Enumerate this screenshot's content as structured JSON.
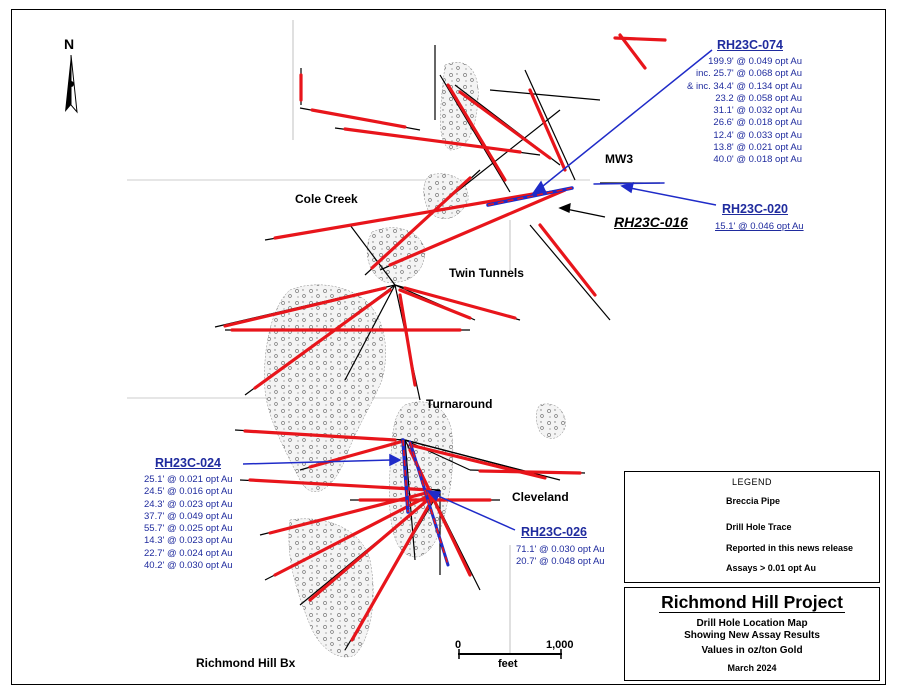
{
  "north_arrow": {
    "letter": "N"
  },
  "areas": {
    "cole_creek": "Cole Creek",
    "twin_tunnels": "Twin Tunnels",
    "turnaround": "Turnaround",
    "cleveland": "Cleveland",
    "mw3": "MW3",
    "richmond_hill_bx": "Richmond Hill Bx"
  },
  "holes": {
    "rh23c_074": {
      "name": "RH23C-074",
      "assays": [
        "199.9' @ 0.049 opt Au",
        "inc. 25.7' @ 0.068 opt Au",
        "& inc. 34.4' @ 0.134 opt Au",
        "23.2  @ 0.058 opt Au",
        "31.1' @ 0.032 opt Au",
        "26.6' @ 0.018 opt Au",
        "12.4' @ 0.033 opt Au",
        "13.8' @  0.021 opt Au",
        "40.0' @ 0.018 opt Au"
      ]
    },
    "rh23c_020": {
      "name": "RH23C-020",
      "assays": [
        "15.1' @ 0.046 opt Au"
      ]
    },
    "rh23c_016": {
      "name": "RH23C-016"
    },
    "rh23c_024": {
      "name": "RH23C-024",
      "assays": [
        "25.1' @ 0.021 opt Au",
        "24.5' @ 0.016 opt Au",
        "24.3' @ 0.023 opt Au",
        "37.7' @ 0.049 opt Au",
        "55.7' @ 0.025 opt Au",
        "14.3' @ 0.023 opt Au",
        "22.7' @ 0.024 opt Au",
        "40.2' @ 0.030 opt Au"
      ]
    },
    "rh23c_026": {
      "name": "RH23C-026",
      "assays": [
        "71.1' @ 0.030 opt Au",
        "20.7' @ 0.048 opt Au"
      ]
    }
  },
  "legend": {
    "title": "LEGEND",
    "breccia": "Breccia Pipe",
    "trace": "Drill Hole Trace",
    "reported": "Reported in this news release",
    "assays": "Assays > 0.01 opt Au"
  },
  "title_block": {
    "project": "Richmond Hill Project",
    "line1": "Drill Hole Location Map",
    "line2": "Showing New Assay Results",
    "line3": "Values in oz/ton Gold",
    "date": "March 2024"
  },
  "scale": {
    "zero": "0",
    "max": "1,000",
    "unit": "feet"
  },
  "colors": {
    "assay_red": "#e8151b",
    "reported_blue": "#1f2bc8",
    "label_blue": "#1f2b9e"
  }
}
